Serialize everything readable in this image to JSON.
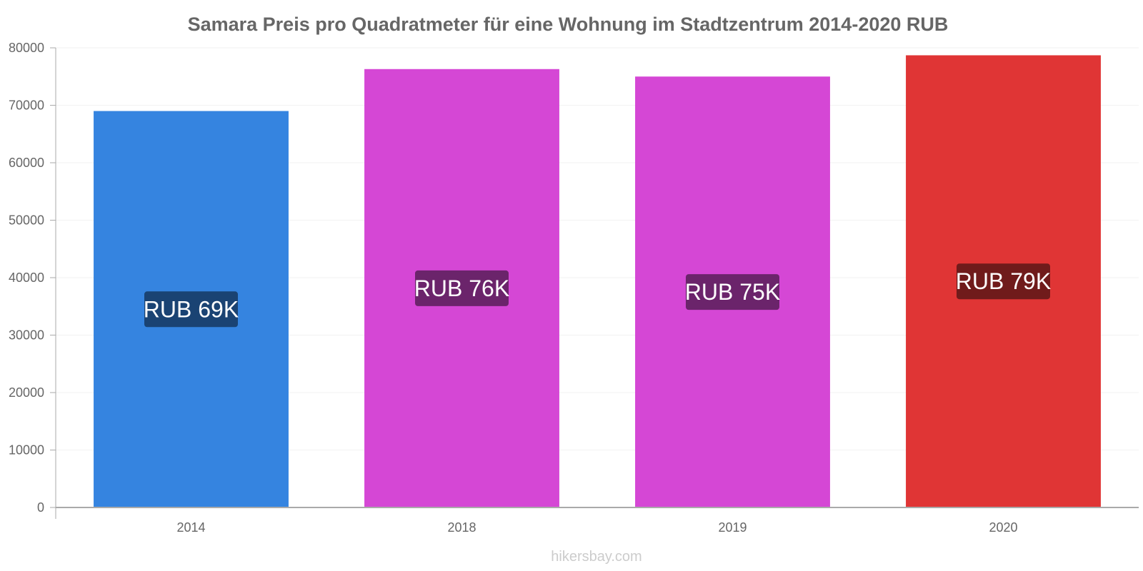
{
  "chart_data": {
    "type": "bar",
    "title": "Samara Preis pro Quadratmeter für eine Wohnung im Stadtzentrum 2014-2020 RUB",
    "xlabel": "",
    "ylabel": "",
    "categories": [
      "2014",
      "2018",
      "2019",
      "2020"
    ],
    "values": [
      69000,
      76300,
      75000,
      78700
    ],
    "value_labels": [
      "RUB 69K",
      "RUB 76K",
      "RUB 75K",
      "RUB 79K"
    ],
    "colors": [
      "#3584e0",
      "#d547d5",
      "#d547d5",
      "#e03535"
    ],
    "label_colors": [
      "#1a4373",
      "#6b246b",
      "#6b246b",
      "#701b1b"
    ],
    "ylim": [
      0,
      80000
    ],
    "yticks": [
      "0",
      "10000",
      "20000",
      "30000",
      "40000",
      "50000",
      "60000",
      "70000",
      "80000"
    ],
    "grid": true,
    "legend": "none"
  },
  "footer": {
    "watermark": "hikersbay.com"
  }
}
